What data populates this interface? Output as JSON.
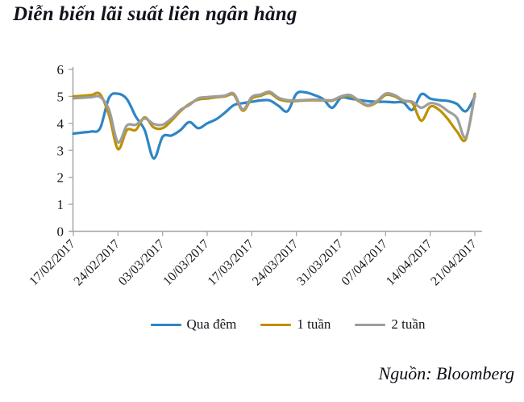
{
  "title": "Diễn biến lãi suất liên ngân hàng",
  "source": "Nguồn: Bloomberg",
  "colors": {
    "axis": "#A6A6A6",
    "label_text": "#17171F"
  },
  "chart_data": {
    "type": "line",
    "title": "Diễn biến lãi suất liên ngân hàng",
    "xlabel": "",
    "ylabel": "",
    "ylim": [
      0,
      6
    ],
    "y_ticks": [
      0,
      1,
      2,
      3,
      4,
      5,
      6
    ],
    "grid": false,
    "legend_position": "bottom",
    "x_frequency": "daily (weekdays), weekly ticks",
    "points_per_tick": 5,
    "x_tick_labels": [
      "17/02/2017",
      "24/02/2017",
      "03/03/2017",
      "10/03/2017",
      "17/03/2017",
      "24/03/2017",
      "31/03/2017",
      "07/04/2017",
      "14/04/2017",
      "21/04/2017"
    ],
    "series": [
      {
        "key": "qua-dem",
        "name": "Qua đêm",
        "color": "#2E86C5",
        "values": [
          3.62,
          3.66,
          3.7,
          3.82,
          4.95,
          5.1,
          4.9,
          4.25,
          3.75,
          2.7,
          3.5,
          3.55,
          3.75,
          4.05,
          3.82,
          4.0,
          4.15,
          4.4,
          4.68,
          4.75,
          4.8,
          4.85,
          4.85,
          4.65,
          4.45,
          5.1,
          5.15,
          5.05,
          4.9,
          4.58,
          4.95,
          4.92,
          4.87,
          4.82,
          4.8,
          4.8,
          4.78,
          4.77,
          4.5,
          5.08,
          4.92,
          4.86,
          4.83,
          4.72,
          4.45,
          5.0
        ]
      },
      {
        "key": "1-tuan",
        "name": "1 tuần",
        "color": "#BF9000",
        "values": [
          5.0,
          5.02,
          5.05,
          5.08,
          4.3,
          3.05,
          3.75,
          3.76,
          4.22,
          3.85,
          3.82,
          4.1,
          4.45,
          4.72,
          4.88,
          4.92,
          4.97,
          5.0,
          5.05,
          4.47,
          4.92,
          5.02,
          5.12,
          4.9,
          4.82,
          4.83,
          4.85,
          4.86,
          4.85,
          4.84,
          4.98,
          5.02,
          4.82,
          4.65,
          4.78,
          5.05,
          5.0,
          4.82,
          4.75,
          4.1,
          4.62,
          4.5,
          4.15,
          3.7,
          3.42,
          5.1
        ]
      },
      {
        "key": "2-tuan",
        "name": "2 tuần",
        "color": "#9D9D9D",
        "values": [
          4.93,
          4.95,
          4.97,
          4.98,
          4.5,
          3.3,
          3.92,
          3.95,
          4.18,
          3.98,
          3.95,
          4.18,
          4.5,
          4.68,
          4.93,
          4.97,
          5.0,
          5.03,
          5.1,
          4.52,
          4.98,
          5.07,
          5.17,
          4.95,
          4.86,
          4.85,
          4.87,
          4.88,
          4.87,
          4.86,
          5.0,
          5.05,
          4.85,
          4.68,
          4.82,
          5.1,
          5.05,
          4.85,
          4.8,
          4.58,
          4.75,
          4.68,
          4.45,
          4.2,
          3.48,
          5.05
        ]
      }
    ]
  }
}
